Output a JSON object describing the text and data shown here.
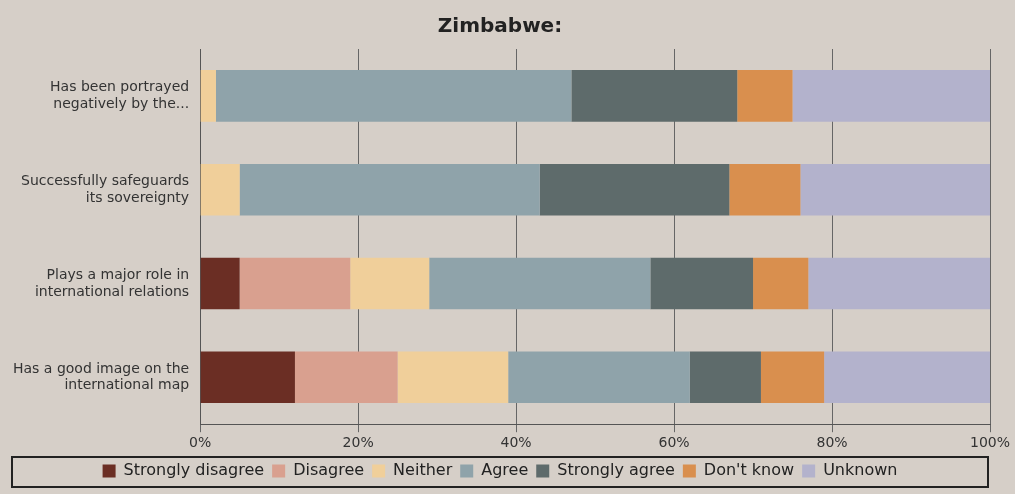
{
  "chart_data": {
    "type": "bar",
    "orientation": "horizontal",
    "stacked": true,
    "title": "Zimbabwe:",
    "categories": [
      "Has been portrayed negatively by the...",
      "Successfully safeguards its sovereignty",
      "Plays a major role in international relations",
      "Has a good image on the international map"
    ],
    "series": [
      {
        "name": "Strongly disagree",
        "color": "#6b2e24",
        "values": [
          0,
          0,
          5,
          12
        ]
      },
      {
        "name": "Disagree",
        "color": "#d9a08f",
        "values": [
          0,
          0,
          14,
          13
        ]
      },
      {
        "name": "Neither",
        "color": "#f0cf9a",
        "values": [
          2,
          5,
          10,
          14
        ]
      },
      {
        "name": "Agree",
        "color": "#8fa3aa",
        "values": [
          45,
          38,
          28,
          23
        ]
      },
      {
        "name": "Strongly agree",
        "color": "#5e6b6b",
        "values": [
          21,
          24,
          13,
          9
        ]
      },
      {
        "name": "Don't know",
        "color": "#d98f4e",
        "values": [
          7,
          9,
          7,
          8
        ]
      },
      {
        "name": "Unknown",
        "color": "#b3b2cc",
        "values": [
          25,
          24,
          23,
          21
        ]
      }
    ],
    "xlim": [
      0,
      100
    ],
    "xticks": [
      {
        "value": 0,
        "label": "0%"
      },
      {
        "value": 20,
        "label": "20%"
      },
      {
        "value": 40,
        "label": "40%"
      },
      {
        "value": 60,
        "label": "60%"
      },
      {
        "value": 80,
        "label": "80%"
      },
      {
        "value": 100,
        "label": "100%"
      }
    ],
    "grid": "x",
    "legend": "bottom"
  }
}
